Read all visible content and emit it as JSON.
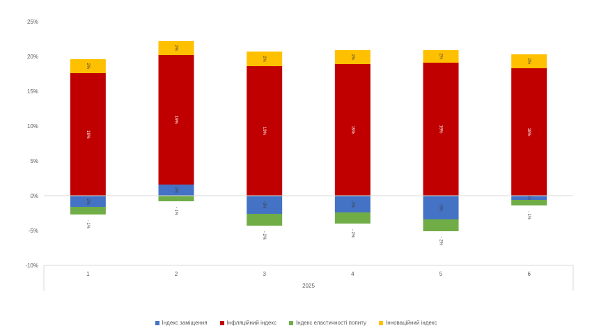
{
  "chart_data": {
    "type": "bar",
    "stacked": true,
    "categories": [
      "1",
      "2",
      "3",
      "4",
      "5",
      "6"
    ],
    "group_label": "2025",
    "ylim": [
      -10,
      25
    ],
    "yticks": [
      -10,
      -5,
      0,
      5,
      10,
      15,
      20,
      25
    ],
    "ytick_labels": [
      "-10%",
      "-5%",
      "0%",
      "5%",
      "10%",
      "15%",
      "20%",
      "25%"
    ],
    "grid": false,
    "legend_position": "bottom",
    "series": [
      {
        "name": "Індекс заміщення",
        "color": "#4472C4",
        "values": [
          -1.6,
          1.6,
          -2.6,
          -2.4,
          -3.4,
          -0.6
        ],
        "labels": [
          "-2%",
          "2%",
          "-3%",
          "-2%",
          "-3%",
          "-1%"
        ],
        "label_pos": [
          "inside",
          "inside",
          "inside",
          "inside",
          "inside",
          "inside"
        ]
      },
      {
        "name": "Інфляційний індекс",
        "color": "#C00000",
        "values": [
          17.6,
          18.6,
          18.6,
          18.9,
          19.1,
          18.3
        ],
        "labels": [
          "18%",
          "19%",
          "19%",
          "19%",
          "19%",
          "18%"
        ],
        "label_pos": [
          "inside",
          "inside",
          "inside",
          "inside",
          "inside",
          "inside"
        ]
      },
      {
        "name": "Індекс еластичності попиту",
        "color": "#70AD47",
        "values": [
          -1.1,
          -0.8,
          -1.7,
          -1.6,
          -1.7,
          -0.8
        ],
        "labels": [
          "- 1%",
          "- 1%",
          "- 2%",
          "- 2%",
          "- 2%",
          "- 1%"
        ],
        "label_pos": [
          "below",
          "below",
          "below",
          "below",
          "below",
          "below"
        ]
      },
      {
        "name": "Інноваційний індекс",
        "color": "#FFC000",
        "values": [
          2.0,
          2.0,
          2.1,
          2.0,
          1.8,
          2.0
        ],
        "labels": [
          "2%",
          "2%",
          "2%",
          "2%",
          "2%",
          "2%"
        ],
        "label_pos": [
          "inside",
          "inside",
          "inside",
          "inside",
          "inside",
          "inside"
        ]
      }
    ]
  }
}
